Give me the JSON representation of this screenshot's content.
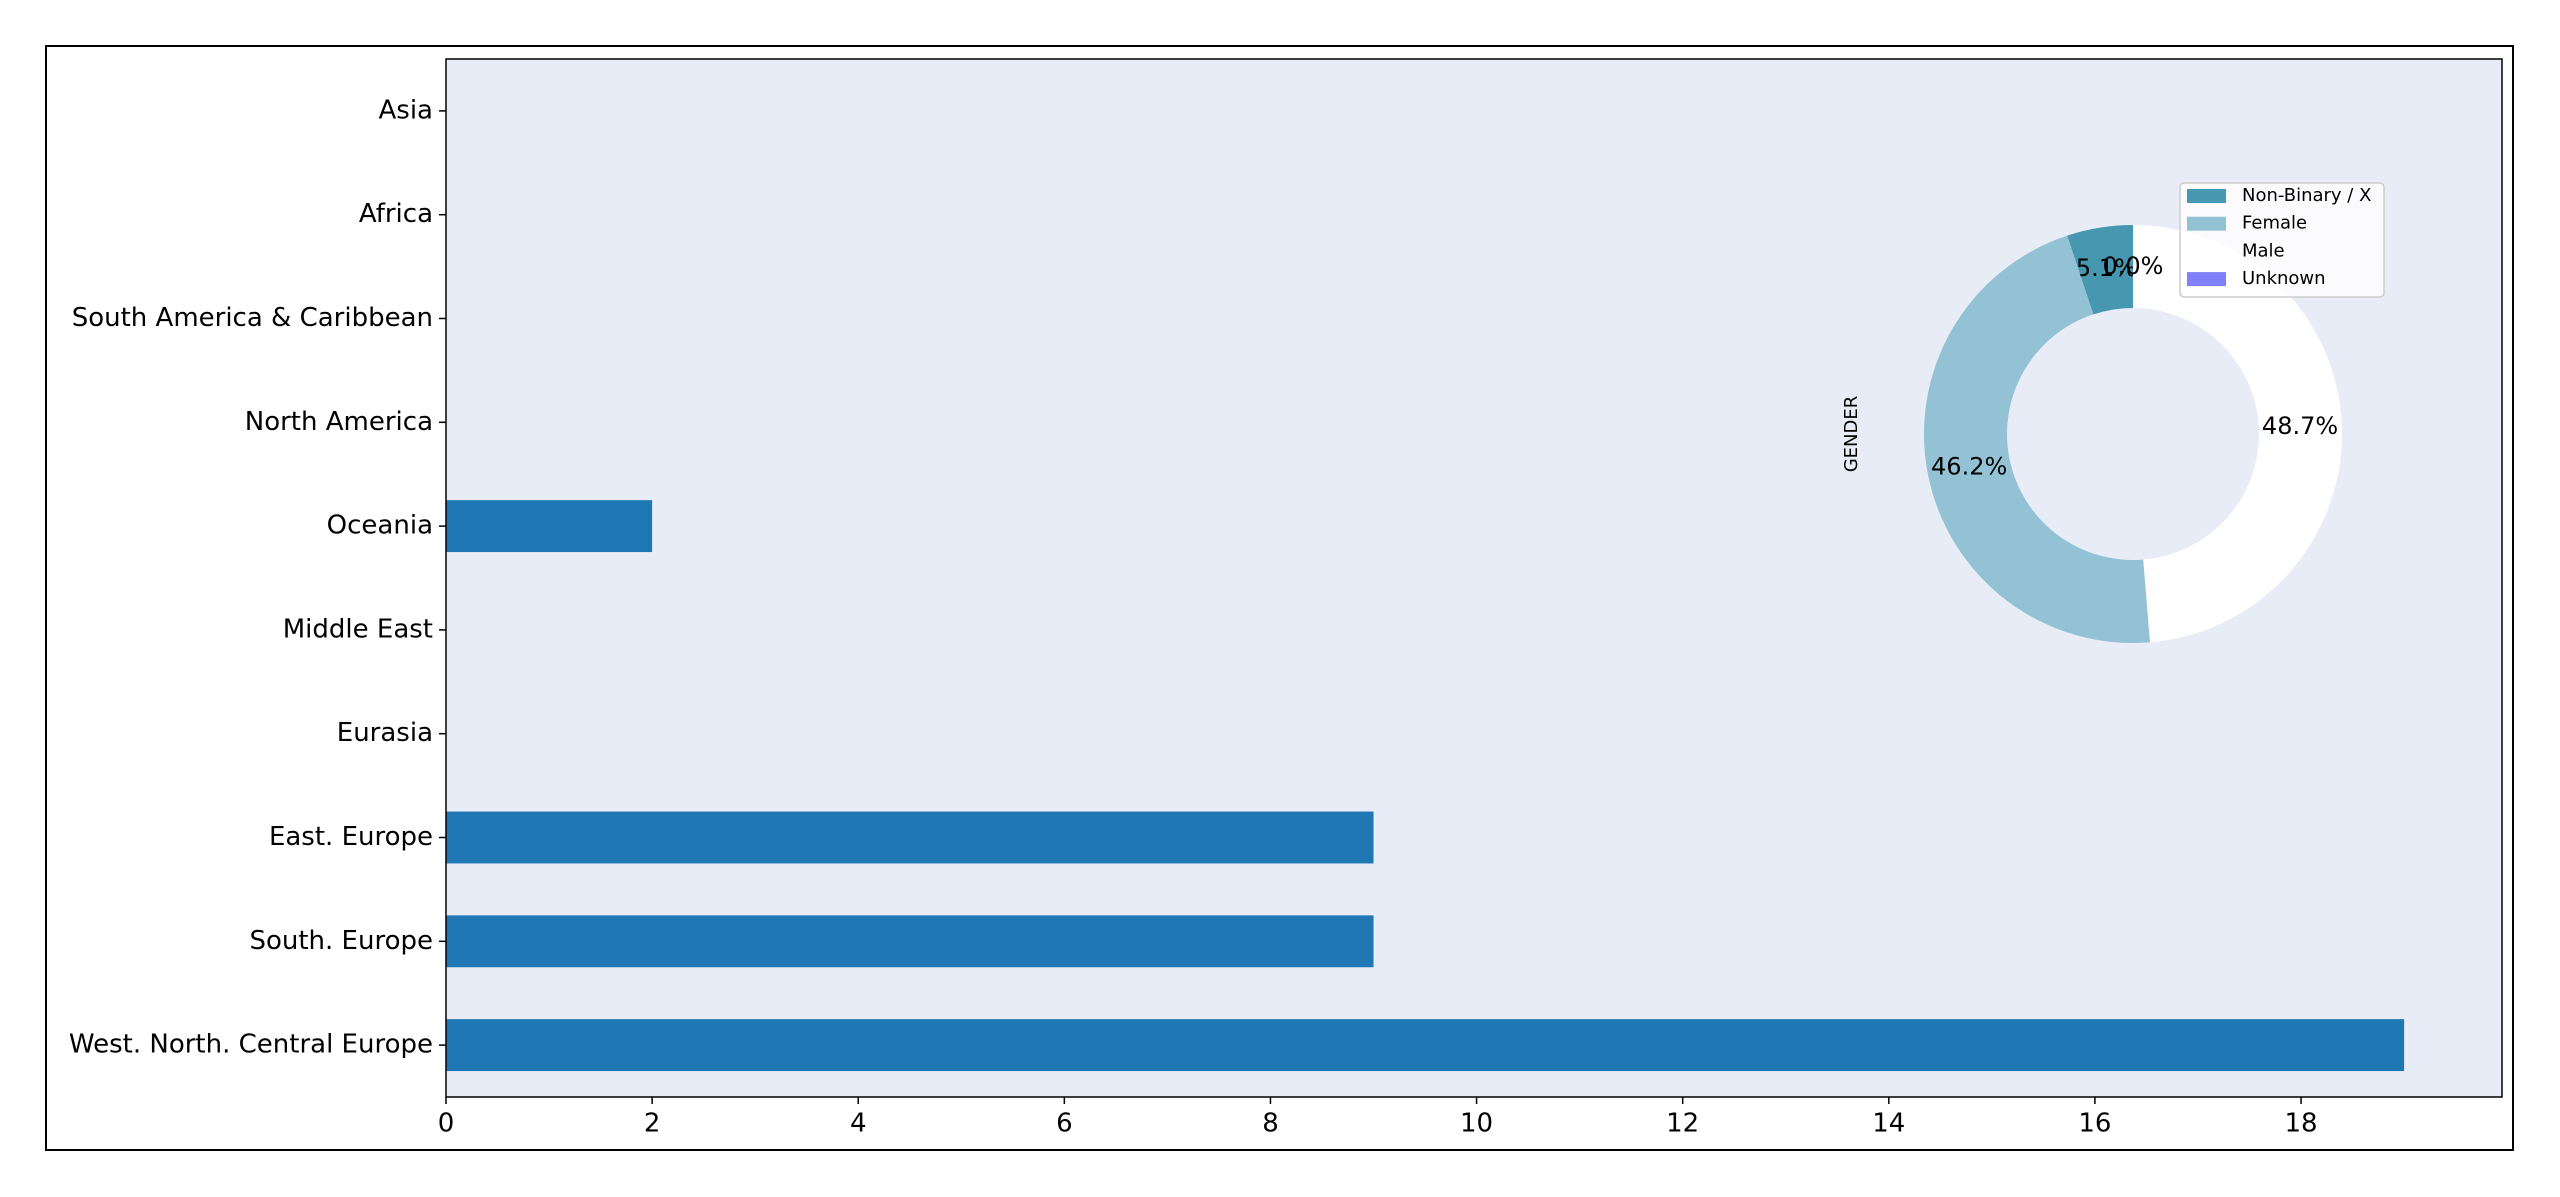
{
  "chart_data": [
    {
      "type": "barh",
      "categories": [
        "West. North. Central Europe",
        "South. Europe",
        "East. Europe",
        "Eurasia",
        "Middle East",
        "Oceania",
        "North America",
        "South America & Caribbean",
        "Africa",
        "Asia"
      ],
      "values": [
        19,
        9,
        9,
        0,
        0,
        2,
        0,
        0,
        0,
        0
      ],
      "color": "#1f77b4",
      "xlim": [
        0,
        19.95
      ],
      "xticks": [
        0,
        2,
        4,
        6,
        8,
        10,
        12,
        14,
        16,
        18
      ]
    },
    {
      "type": "pie",
      "ylabel": "GENDER",
      "categories": [
        "Non-Binary / X",
        "Female",
        "Male",
        "Unknown"
      ],
      "values": [
        5.1,
        46.2,
        48.7,
        0.0
      ],
      "value_labels": [
        "5.1%",
        "46.2%",
        "48.7%",
        "0.0%"
      ],
      "colors": [
        "#4797b1",
        "#93c2d4",
        "#ffffff",
        "#8080f8"
      ],
      "donut": true,
      "legend": "upper right"
    }
  ]
}
